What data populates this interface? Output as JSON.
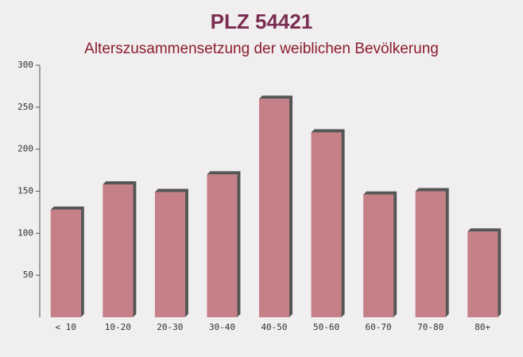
{
  "chart_data": {
    "type": "bar",
    "title": "PLZ 54421",
    "subtitle": "Alterszusammensetzung der weiblichen Bevölkerung",
    "categories": [
      "< 10",
      "10-20",
      "20-30",
      "30-40",
      "40-50",
      "50-60",
      "60-70",
      "70-80",
      "80+"
    ],
    "values": [
      128,
      158,
      149,
      170,
      260,
      220,
      146,
      150,
      102
    ],
    "color": "#c0737b",
    "ylim": [
      0,
      300
    ],
    "yticks": [
      50,
      100,
      150,
      200,
      250,
      300
    ],
    "grid": false
  }
}
